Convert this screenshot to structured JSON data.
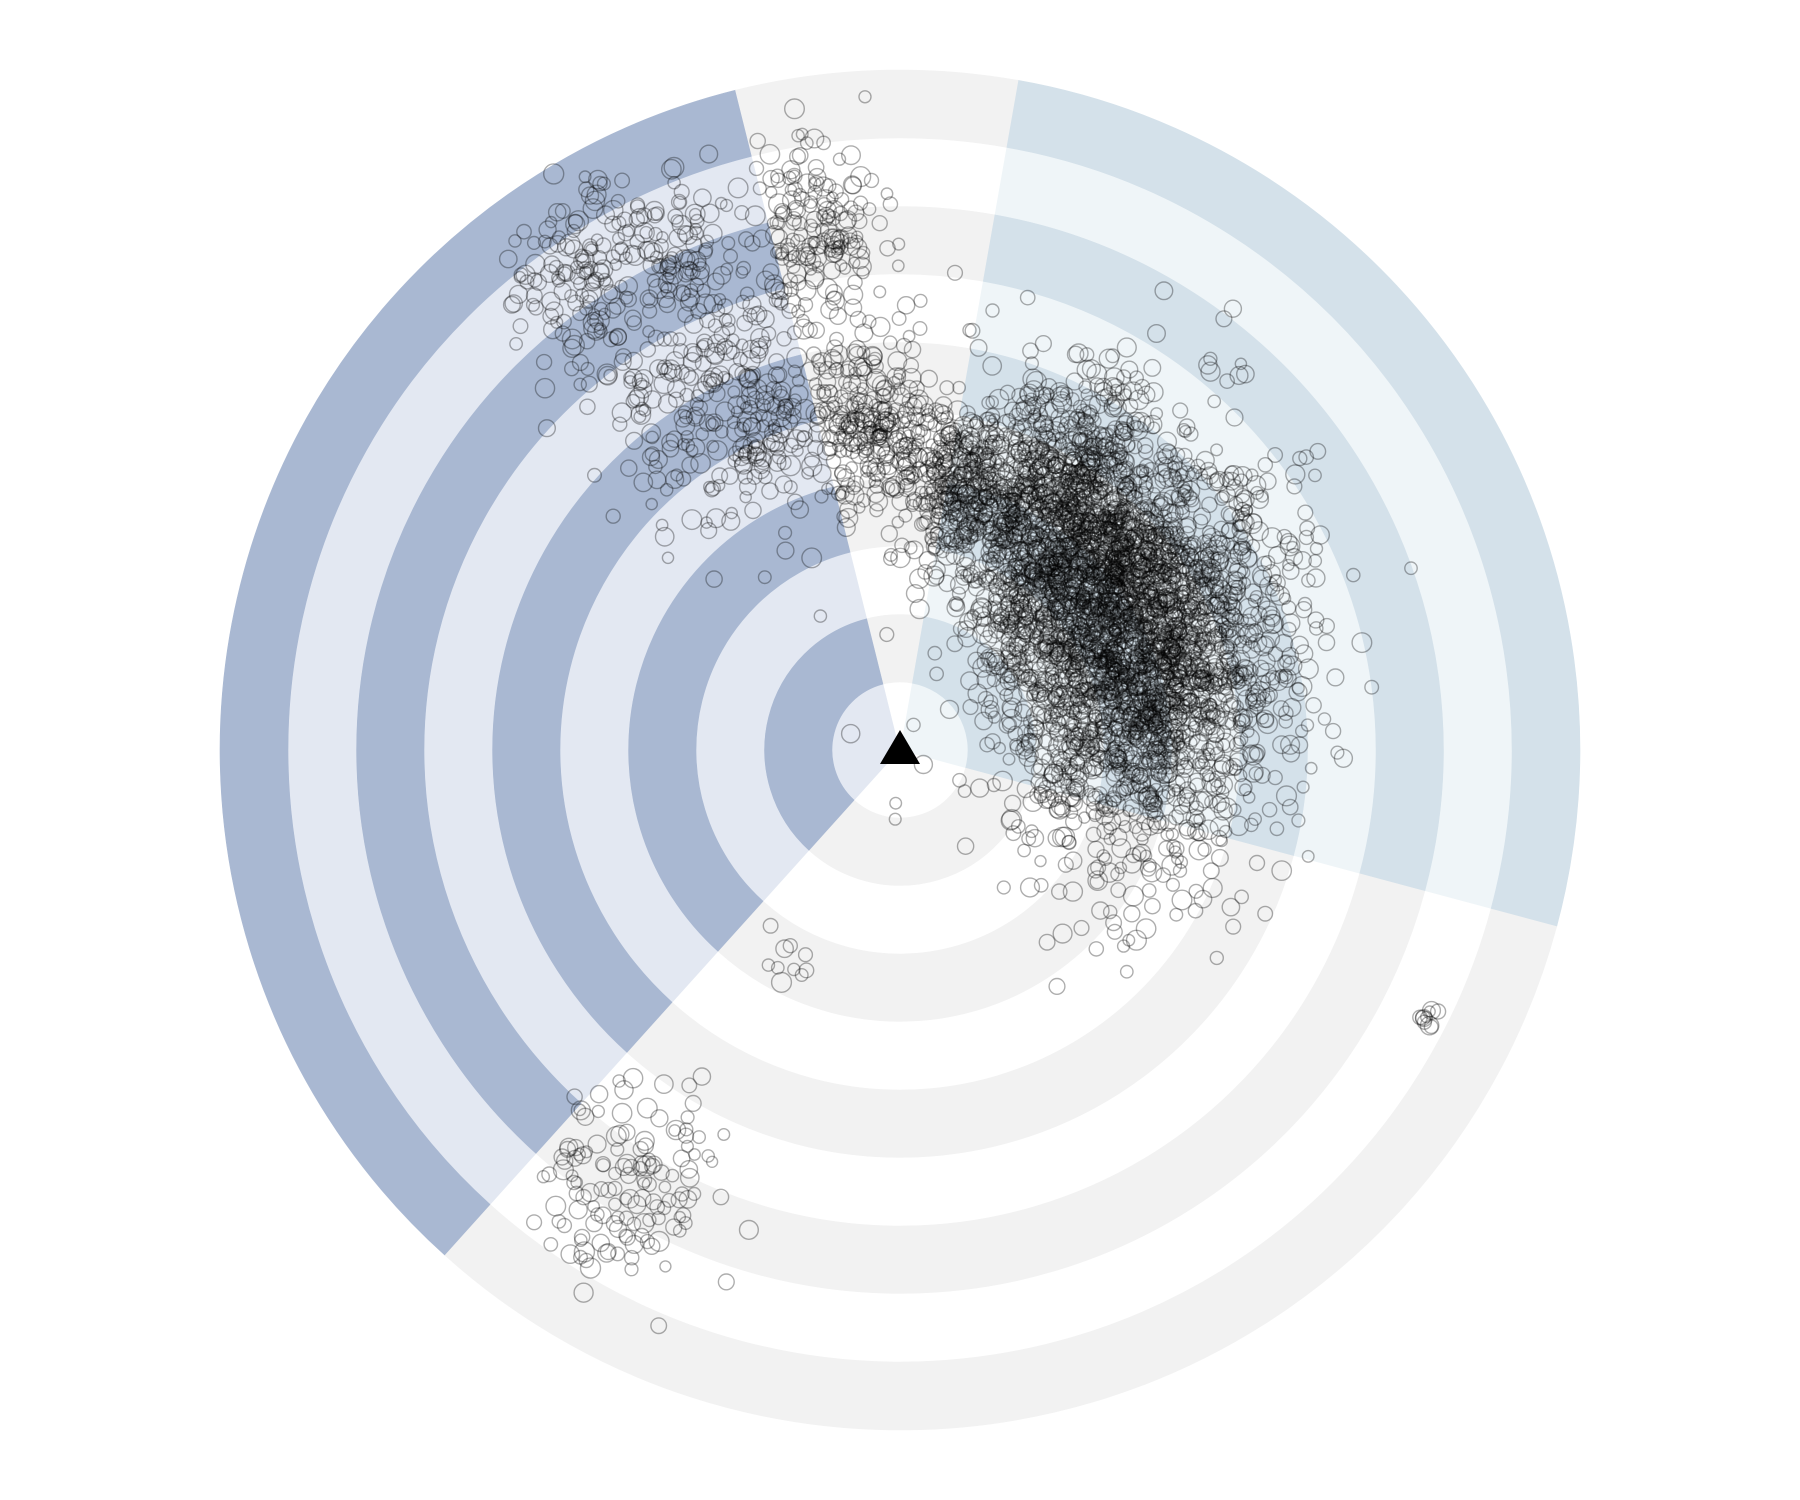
{
  "chart_data": {
    "type": "scatter",
    "coordinate_system": "polar",
    "title": "",
    "rings": 10,
    "grid": true,
    "center_marker": "triangle",
    "sectors": [
      {
        "from_deg": 104,
        "to_deg": 228,
        "band_color": "#a9b8d2",
        "alt_color": "#e3e8f2"
      },
      {
        "from_deg": 228,
        "to_deg": 345,
        "band_color": "#f2f2f2",
        "alt_color": "#ffffff"
      },
      {
        "from_deg": 345,
        "to_deg": 440,
        "band_color": "#d4e1ea",
        "alt_color": "#eff5f8"
      },
      {
        "from_deg": 440,
        "to_deg": 464,
        "band_color": "#f2f2f2",
        "alt_color": "#ffffff"
      }
    ],
    "point_color": "#000000",
    "clusters": [
      {
        "name": "",
        "theta_deg": 23,
        "r": 0.38,
        "spread": 0.14,
        "count": 2600
      },
      {
        "name": "",
        "theta_deg": 55,
        "r": 0.4,
        "spread": 0.1,
        "count": 1200
      },
      {
        "name": "",
        "theta_deg": 78,
        "r": 0.4,
        "spread": 0.05,
        "count": 260
      },
      {
        "name": "",
        "theta_deg": 95,
        "r": 0.48,
        "spread": 0.06,
        "count": 260
      },
      {
        "name": "",
        "theta_deg": 99,
        "r": 0.77,
        "spread": 0.07,
        "count": 180
      },
      {
        "name": "",
        "theta_deg": 113,
        "r": 0.53,
        "spread": 0.07,
        "count": 130
      },
      {
        "name": "",
        "theta_deg": 121,
        "r": 0.6,
        "spread": 0.1,
        "count": 180
      },
      {
        "name": "",
        "theta_deg": 124,
        "r": 0.85,
        "spread": 0.07,
        "count": 150
      },
      {
        "name": "",
        "theta_deg": 113,
        "r": 0.8,
        "spread": 0.06,
        "count": 80
      },
      {
        "name": "",
        "theta_deg": 238,
        "r": 0.75,
        "spread": 0.08,
        "count": 140
      },
      {
        "name": "",
        "theta_deg": 242,
        "r": 0.36,
        "spread": 0.03,
        "count": 10
      },
      {
        "name": "",
        "theta_deg": 333,
        "r": 0.87,
        "spread": 0.01,
        "count": 10
      },
      {
        "name": "",
        "theta_deg": 48,
        "r": 0.75,
        "spread": 0.01,
        "count": 3
      }
    ]
  }
}
